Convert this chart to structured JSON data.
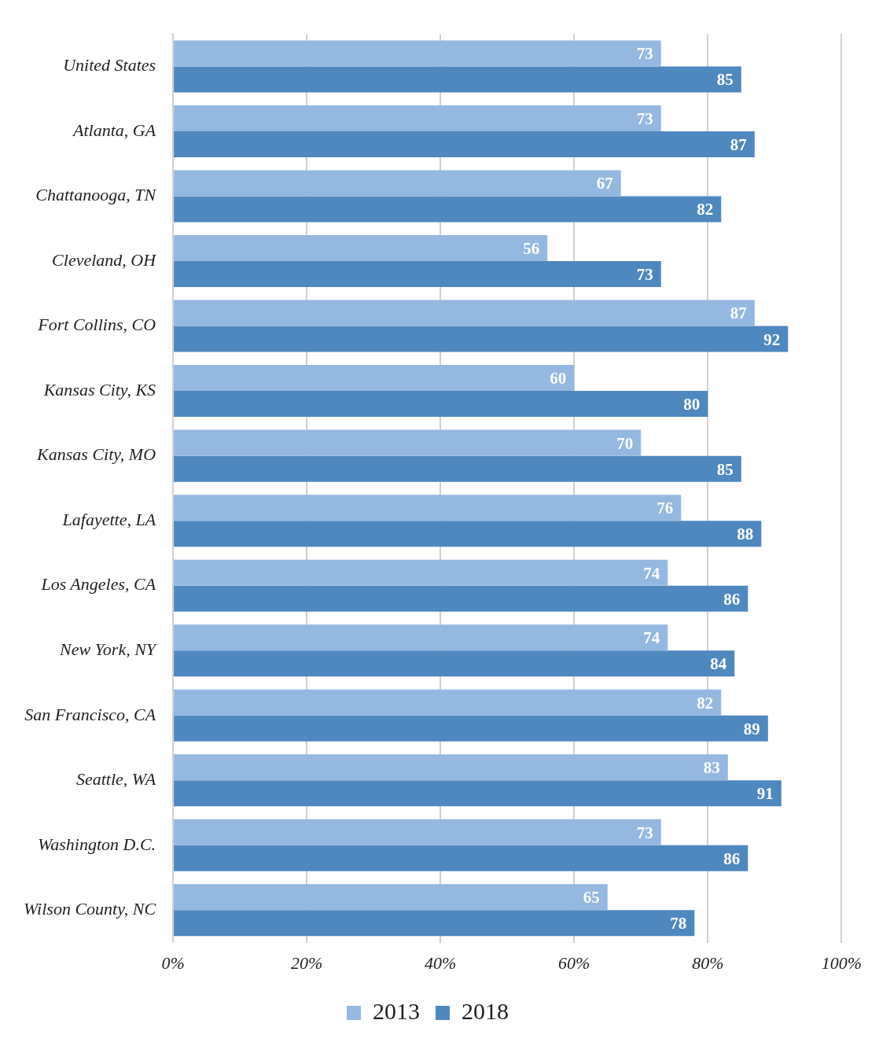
{
  "chart_data": {
    "type": "bar",
    "orientation": "horizontal",
    "categories": [
      "United States",
      "Atlanta, GA",
      "Chattanooga, TN",
      "Cleveland, OH",
      "Fort Collins, CO",
      "Kansas City, KS",
      "Kansas City, MO",
      "Lafayette, LA",
      "Los Angeles, CA",
      "New York, NY",
      "San Francisco, CA",
      "Seattle, WA",
      "Washington D.C.",
      "Wilson County, NC"
    ],
    "series": [
      {
        "name": "2013",
        "color": "#95b8e0",
        "values": [
          73,
          73,
          67,
          56,
          87,
          60,
          70,
          76,
          74,
          74,
          82,
          83,
          73,
          65
        ]
      },
      {
        "name": "2018",
        "color": "#4f88bf",
        "values": [
          85,
          87,
          82,
          73,
          92,
          80,
          85,
          88,
          86,
          84,
          89,
          91,
          86,
          78
        ]
      }
    ],
    "xlim": [
      0,
      100
    ],
    "xticks": [
      {
        "value": 0,
        "label": "0%"
      },
      {
        "value": 20,
        "label": "20%"
      },
      {
        "value": 40,
        "label": "40%"
      },
      {
        "value": 60,
        "label": "60%"
      },
      {
        "value": 80,
        "label": "80%"
      },
      {
        "value": 100,
        "label": "100%"
      }
    ],
    "grid": "x",
    "legend": "bottom",
    "data_labels": true
  }
}
